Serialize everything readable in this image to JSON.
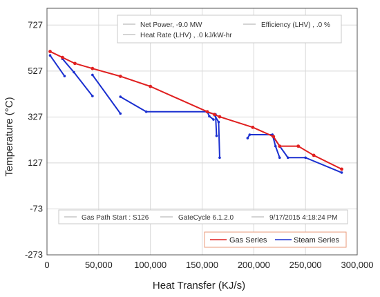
{
  "chart_data": {
    "type": "line",
    "xlabel": "Heat Transfer  (KJ/s)",
    "ylabel": "Temperature (°C)",
    "xlim": [
      0,
      300000
    ],
    "ylim": [
      -273,
      800
    ],
    "x_ticks": [
      0,
      50000,
      100000,
      150000,
      200000,
      250000,
      300000
    ],
    "x_tick_labels": [
      "0",
      "50,000",
      "100,000",
      "150,000",
      "200,000",
      "250,000",
      "300,000"
    ],
    "y_ticks": [
      -273,
      -73,
      127,
      327,
      527,
      727
    ],
    "y_tick_labels": [
      "-273",
      "-73",
      "127",
      "327",
      "527",
      "727"
    ],
    "grid": true,
    "legend_position": "bottom-right",
    "series": [
      {
        "name": "Gas Series",
        "color": "#e02020",
        "marker": "dot",
        "points": [
          [
            3000,
            612
          ],
          [
            15000,
            586
          ],
          [
            27000,
            560
          ],
          [
            44000,
            538
          ],
          [
            71000,
            504
          ],
          [
            100000,
            460
          ],
          [
            155000,
            350
          ],
          [
            162000,
            338
          ],
          [
            167000,
            328
          ],
          [
            199000,
            282
          ],
          [
            219000,
            242
          ],
          [
            225000,
            200
          ],
          [
            243000,
            200
          ],
          [
            258000,
            160
          ],
          [
            285000,
            100
          ]
        ]
      },
      {
        "name": "Steam Series",
        "color": "#1a2fd0",
        "marker": "dot",
        "segments": [
          [
            [
              3000,
              595
            ],
            [
              17000,
              505
            ]
          ],
          [
            [
              15000,
              580
            ],
            [
              26000,
              522
            ],
            [
              44000,
              418
            ]
          ],
          [
            [
              44000,
              510
            ],
            [
              71000,
              342
            ]
          ],
          [
            [
              71000,
              415
            ],
            [
              96000,
              350
            ],
            [
              155000,
              350
            ],
            [
              157000,
              330
            ],
            [
              161000,
              316
            ]
          ],
          [
            [
              155000,
              348
            ],
            [
              163000,
              338
            ],
            [
              164000,
              245
            ]
          ],
          [
            [
              162000,
              335
            ],
            [
              166000,
              305
            ],
            [
              167000,
              150
            ]
          ],
          [
            [
              194000,
              235
            ],
            [
              196000,
              250
            ],
            [
              218000,
              250
            ]
          ],
          [
            [
              218000,
              250
            ],
            [
              221000,
              200
            ],
            [
              225000,
              150
            ]
          ],
          [
            [
              218000,
              245
            ],
            [
              233000,
              150
            ],
            [
              250000,
              150
            ],
            [
              285000,
              85
            ]
          ]
        ]
      }
    ],
    "info_box": {
      "net_power": "Net Power,    -9.0 MW",
      "efficiency": "Efficiency (LHV) , .0 %",
      "heat_rate": "Heat Rate (LHV) , .0 kJ/kW-hr"
    },
    "footer_box": {
      "gas_path_start": "Gas Path Start : S126",
      "version": "GateCycle 6.1.2.0",
      "timestamp": "9/17/2015 4:18:24 PM"
    },
    "colors": {
      "gas": "#e02020",
      "steam": "#1a2fd0",
      "grid": "#d8d8d8",
      "legend_border": "#e89a7a"
    }
  }
}
